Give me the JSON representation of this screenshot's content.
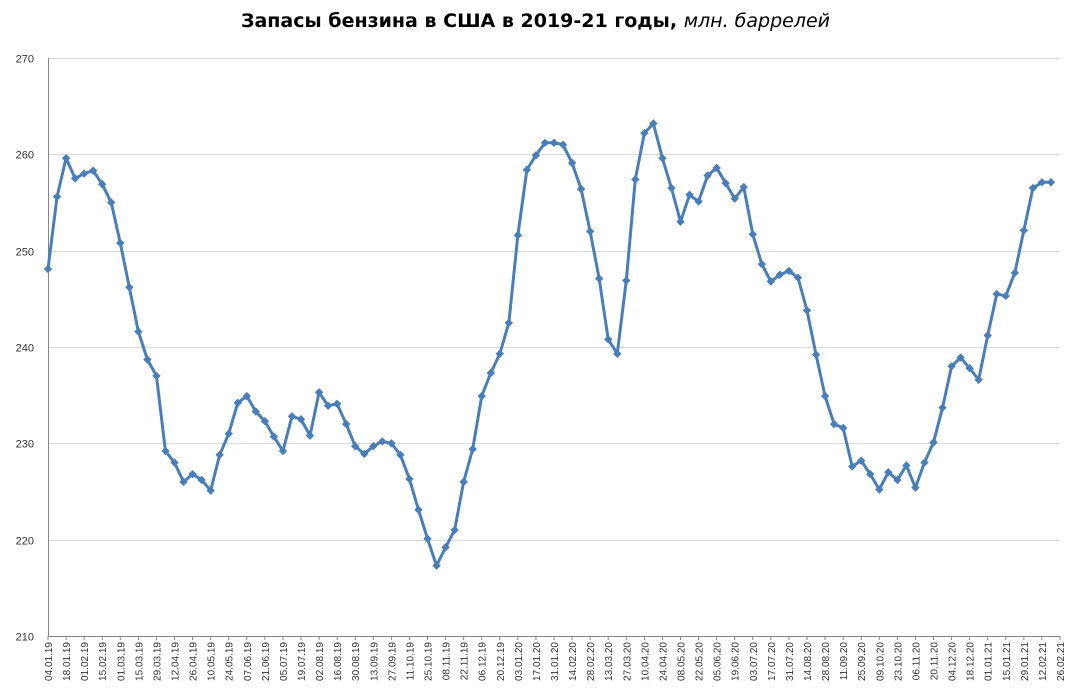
{
  "chart_data": {
    "type": "line",
    "title": "Запасы бензина в США в 2019-21 годы,",
    "subtitle": "млн. баррелей",
    "ylim": [
      210,
      270
    ],
    "yticks": [
      210,
      220,
      230,
      240,
      250,
      260,
      270
    ],
    "grid": "horizontal",
    "line_color": "#4A7EBB",
    "xtick_labels": [
      "04.01.19",
      "18.01.19",
      "01.02.19",
      "15.02.19",
      "01.03.19",
      "15.03.19",
      "29.03.19",
      "12.04.19",
      "26.04.19",
      "10.05.19",
      "24.05.19",
      "07.06.19",
      "21.06.19",
      "05.07.19",
      "19.07.19",
      "02.08.19",
      "16.08.19",
      "30.08.19",
      "13.09.19",
      "27.09.19",
      "11.10.19",
      "25.10.19",
      "08.11.19",
      "22.11.19",
      "06.12.19",
      "20.12.19",
      "03.01.20",
      "17.01.20",
      "31.01.20",
      "14.02.20",
      "28.02.20",
      "13.03.20",
      "27.03.20",
      "10.04.20",
      "24.04.20",
      "08.05.20",
      "22.05.20",
      "05.06.20",
      "19.06.20",
      "03.07.20",
      "17.07.20",
      "31.07.20",
      "14.08.20",
      "28.08.20",
      "11.09.20",
      "25.09.20",
      "09.10.20",
      "23.10.20",
      "06.11.20",
      "20.11.20",
      "04.12.20",
      "18.12.20",
      "01.01.21",
      "15.01.21",
      "29.01.21",
      "12.02.21",
      "26.02.21"
    ],
    "values": [
      248.1,
      255.6,
      259.6,
      257.5,
      258.0,
      258.3,
      256.9,
      255.0,
      250.8,
      246.2,
      241.6,
      238.7,
      237.0,
      229.2,
      228.0,
      226.0,
      226.8,
      226.2,
      225.1,
      228.8,
      231.0,
      234.2,
      234.9,
      233.3,
      232.3,
      230.7,
      229.2,
      232.8,
      232.5,
      230.8,
      235.3,
      233.9,
      234.1,
      232.0,
      229.7,
      228.9,
      229.7,
      230.2,
      230.0,
      228.8,
      226.3,
      223.1,
      220.1,
      217.3,
      219.2,
      221.0,
      226.0,
      229.4,
      234.9,
      237.3,
      239.3,
      242.5,
      251.6,
      258.4,
      259.9,
      261.2,
      261.2,
      261.0,
      259.1,
      256.4,
      252.0,
      247.1,
      240.8,
      239.3,
      246.9,
      257.4,
      262.2,
      263.2,
      259.6,
      256.5,
      253.0,
      255.8,
      255.1,
      257.8,
      258.6,
      257.0,
      255.4,
      256.6,
      251.7,
      248.6,
      246.8,
      247.5,
      247.9,
      247.2,
      243.8,
      239.2,
      234.9,
      232.0,
      231.6,
      227.6,
      228.2,
      226.8,
      225.2,
      227.0,
      226.2,
      227.7,
      225.4,
      228.0,
      230.1,
      233.7,
      238.0,
      238.9,
      237.8,
      236.6,
      241.2,
      245.5,
      245.3,
      247.7,
      252.1,
      256.5,
      257.1,
      257.1
    ]
  }
}
